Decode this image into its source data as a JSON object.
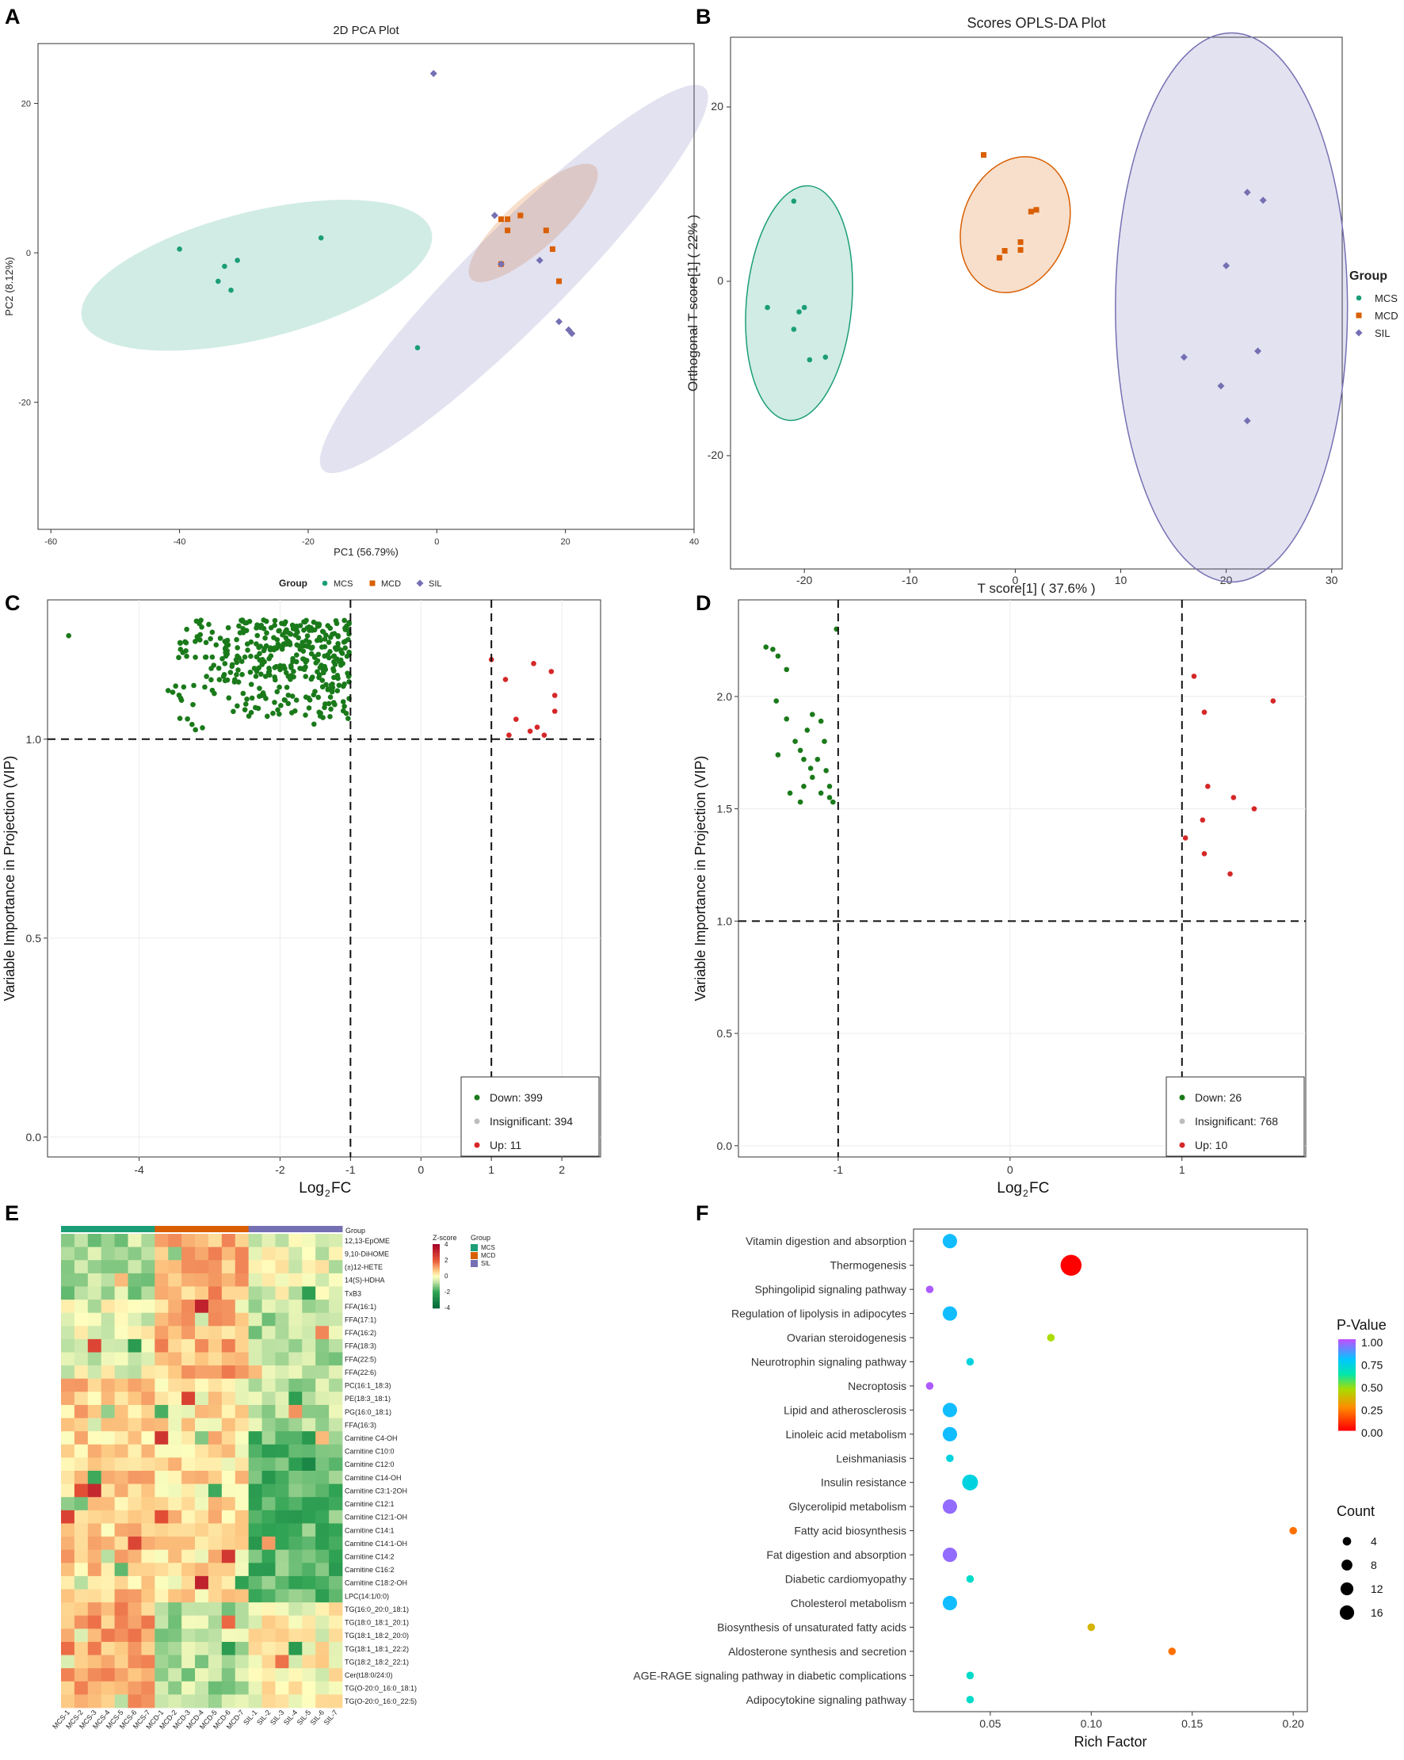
{
  "figure": {
    "panel_labels": [
      "A",
      "B",
      "C",
      "D",
      "E",
      "F"
    ],
    "colors": {
      "MCS": "#1b9e77",
      "MCD": "#d95f02",
      "SIL": "#7570b3",
      "down": "#1a7a1a",
      "insig": "#bdbdbd",
      "up": "#d62728"
    }
  },
  "chart_data": [
    {
      "panel": "A",
      "type": "scatter",
      "title": "2D PCA Plot",
      "xlabel": "PC1 (56.79%)",
      "ylabel": "PC2 (8.12%)",
      "xlim": [
        -62,
        40
      ],
      "ylim": [
        -37,
        28
      ],
      "xticks": [
        -60,
        -40,
        -20,
        0,
        20,
        40
      ],
      "yticks": [
        -20,
        0,
        20
      ],
      "legend": {
        "title": "Group",
        "position": "bottom",
        "entries": [
          "MCS",
          "MCD",
          "SIL"
        ]
      },
      "series": [
        {
          "name": "MCS",
          "points": [
            [
              -40,
              0.5
            ],
            [
              -33,
              -1.8
            ],
            [
              -34,
              -3.8
            ],
            [
              -31,
              -1
            ],
            [
              -32,
              -5
            ],
            [
              -18,
              2
            ],
            [
              -3,
              -12.7
            ]
          ],
          "ellipse": {
            "cx": -28,
            "cy": -3,
            "rx": 28,
            "ry": 8.5,
            "angle_deg": -14
          }
        },
        {
          "name": "MCD",
          "points": [
            [
              10,
              4.5
            ],
            [
              11,
              4.5
            ],
            [
              13,
              5
            ],
            [
              11,
              3
            ],
            [
              17,
              3
            ],
            [
              18,
              0.5
            ],
            [
              19,
              -3.8
            ],
            [
              10,
              -1.5
            ]
          ],
          "ellipse": {
            "cx": 15,
            "cy": 4,
            "rx": 13,
            "ry": 3.5,
            "angle_deg": -42
          }
        },
        {
          "name": "SIL",
          "points": [
            [
              -0.5,
              24
            ],
            [
              9,
              5
            ],
            [
              10,
              -1.5
            ],
            [
              16,
              -1
            ],
            [
              19,
              -9.2
            ],
            [
              20.5,
              -10.3
            ],
            [
              21,
              -10.8
            ]
          ],
          "ellipse": {
            "cx": 12,
            "cy": -3.5,
            "rx": 42,
            "ry": 6.5,
            "angle_deg": -45
          }
        }
      ]
    },
    {
      "panel": "B",
      "type": "scatter",
      "title": "Scores OPLS-DA Plot",
      "xlabel": "T score[1] ( 37.6% )",
      "ylabel": "Orthogonal T score[1] ( 22% )",
      "xlim": [
        -27,
        31
      ],
      "ylim": [
        -33,
        28
      ],
      "xticks": [
        -20,
        -10,
        0,
        10,
        20,
        30
      ],
      "yticks": [
        -20,
        0,
        20
      ],
      "legend": {
        "title": "Group",
        "position": "right",
        "entries": [
          "MCS",
          "MCD",
          "SIL"
        ]
      },
      "series": [
        {
          "name": "MCS",
          "points": [
            [
              -21,
              9.2
            ],
            [
              -23.5,
              -3
            ],
            [
              -20.5,
              -3.5
            ],
            [
              -20,
              -3
            ],
            [
              -21,
              -5.5
            ],
            [
              -19.5,
              -9
            ],
            [
              -18,
              -8.7
            ]
          ],
          "ellipse": {
            "cx": -20.5,
            "cy": -2.5,
            "rx": 5,
            "ry": 13.5,
            "angle_deg": 5
          }
        },
        {
          "name": "MCD",
          "points": [
            [
              -3,
              14.5
            ],
            [
              0.5,
              4.5
            ],
            [
              1.5,
              8
            ],
            [
              2,
              8.2
            ],
            [
              -1,
              3.5
            ],
            [
              -1.5,
              2.7
            ],
            [
              0.5,
              3.6
            ]
          ],
          "ellipse": {
            "cx": 0,
            "cy": 6.5,
            "rx": 5,
            "ry": 8,
            "angle_deg": 20
          }
        },
        {
          "name": "SIL",
          "points": [
            [
              22,
              10.2
            ],
            [
              23.5,
              9.3
            ],
            [
              20,
              1.8
            ],
            [
              16,
              -8.7
            ],
            [
              23,
              -8
            ],
            [
              19.5,
              -12
            ],
            [
              22,
              -16
            ]
          ],
          "ellipse": {
            "cx": 20.5,
            "cy": -3,
            "rx": 11,
            "ry": 31.5,
            "angle_deg": 0
          }
        }
      ]
    },
    {
      "panel": "C",
      "type": "volcano",
      "xlabel": "Log2FC",
      "ylabel": "Variable Importance in Projection (VIP)",
      "xlim": [
        -5.3,
        2.55
      ],
      "ylim": [
        -0.05,
        1.35
      ],
      "xticks": [
        -4,
        -2,
        -1,
        0,
        1,
        2
      ],
      "xtick_labels": [
        "-4",
        "-2",
        "-1",
        "0",
        "1",
        "2"
      ],
      "yticks": [
        0.0,
        0.5,
        1.0
      ],
      "ytick_labels": [
        "0.0",
        "0.5",
        "1.0"
      ],
      "thresholds": {
        "fc": [
          -1,
          1
        ],
        "vip": 1.0
      },
      "counts": {
        "down": 399,
        "insignificant": 394,
        "up": 11
      },
      "legend_labels": [
        "Down: 399",
        "Insignificant: 394",
        "Up: 11"
      ]
    },
    {
      "panel": "D",
      "type": "volcano",
      "xlabel": "Log2FC",
      "ylabel": "Variable Importance in Projection (VIP)",
      "xlim": [
        -1.58,
        1.72
      ],
      "ylim": [
        -0.05,
        2.43
      ],
      "xticks": [
        -1,
        0,
        1
      ],
      "xtick_labels": [
        "-1",
        "0",
        "1"
      ],
      "yticks": [
        0.0,
        0.5,
        1.0,
        1.5,
        2.0
      ],
      "ytick_labels": [
        "0.0",
        "0.5",
        "1.0",
        "1.5",
        "2.0"
      ],
      "thresholds": {
        "fc": [
          -1,
          1
        ],
        "vip": 1.0
      },
      "counts": {
        "down": 26,
        "insignificant": 768,
        "up": 10
      },
      "legend_labels": [
        "Down: 26",
        "Insignificant: 768",
        "Up: 10"
      ]
    },
    {
      "panel": "E",
      "type": "heatmap",
      "annotation_label": "Group",
      "rows": [
        "12,13-EpOME",
        "9,10-DiHOME",
        "(±)12-HETE",
        "14(S)-HDHA",
        "TxB3",
        "FFA(16:1)",
        "FFA(17:1)",
        "FFA(16:2)",
        "FFA(18:3)",
        "FFA(22:5)",
        "FFA(22:6)",
        "PC(16:1_18:3)",
        "PE(18:3_18:1)",
        "PG(16:0_18:1)",
        "FFA(16:3)",
        "Carnitine C4-OH",
        "Carnitine C10:0",
        "Carnitine C12:0",
        "Carnitine C14-OH",
        "Carnitine C3:1-2OH",
        "Carnitine C12:1",
        "Carnitine C12:1-OH",
        "Carnitine C14:1",
        "Carnitine C14:1-OH",
        "Carnitine C14:2",
        "Carnitine C16:2",
        "Carnitine C18:2-OH",
        "LPC(14:1/0:0)",
        "TG(16:0_20:0_18:1)",
        "TG(18:0_18:1_20:1)",
        "TG(18:1_18:2_20:0)",
        "TG(18:1_18:1_22:2)",
        "TG(18:2_18:2_22:1)",
        "Cer(t18:0/24:0)",
        "TG(O-20:0_16:0_18:1)",
        "TG(O-20:0_16:0_22:5)"
      ],
      "columns": [
        "MCS-1",
        "MCS-2",
        "MCS-3",
        "MCS-4",
        "MCS-5",
        "MCS-6",
        "MCS-7",
        "MCD-1",
        "MCD-2",
        "MCD-3",
        "MCD-4",
        "MCD-5",
        "MCD-6",
        "MCD-7",
        "SIL-1",
        "SIL-2",
        "SIL-3",
        "SIL-4",
        "SIL-5",
        "SIL-6",
        "SIL-7"
      ],
      "colorbar": {
        "title": "Z-score",
        "min": -4,
        "max": 4,
        "ticks": [
          "4",
          "2",
          "0",
          "-2",
          "-4"
        ]
      },
      "group_legend": {
        "title": "Group",
        "entries": [
          "MCS",
          "MCD",
          "SIL"
        ]
      }
    },
    {
      "panel": "F",
      "type": "bubble",
      "xlabel": "Rich Factor",
      "xlim": [
        0.012,
        0.207
      ],
      "xticks": [
        0.05,
        0.1,
        0.15,
        0.2
      ],
      "xtick_labels": [
        "0.05",
        "0.10",
        "0.15",
        "0.20"
      ],
      "pathways": [
        "Vitamin digestion and absorption",
        "Thermogenesis",
        "Sphingolipid signaling pathway",
        "Regulation of lipolysis in adipocytes",
        "Ovarian steroidogenesis",
        "Neurotrophin signaling pathway",
        "Necroptosis",
        "Lipid and atherosclerosis",
        "Linoleic acid metabolism",
        "Leishmaniasis",
        "Insulin resistance",
        "Glycerolipid metabolism",
        "Fatty acid biosynthesis",
        "Fat digestion and absorption",
        "Diabetic cardiomyopathy",
        "Cholesterol metabolism",
        "Biosynthesis of unsaturated fatty acids",
        "Aldosterone synthesis and secretion",
        "AGE-RAGE signaling pathway in diabetic complications",
        "Adipocytokine signaling pathway"
      ],
      "rich_factor": [
        0.03,
        0.09,
        0.02,
        0.03,
        0.08,
        0.04,
        0.02,
        0.03,
        0.03,
        0.03,
        0.04,
        0.03,
        0.2,
        0.03,
        0.04,
        0.03,
        0.1,
        0.14,
        0.04,
        0.04
      ],
      "count": [
        7,
        18,
        1,
        7,
        1,
        1,
        1,
        7,
        7,
        1,
        9,
        7,
        1,
        7,
        1,
        7,
        1,
        1,
        1,
        1
      ],
      "p_value": [
        0.8,
        0.0,
        0.98,
        0.8,
        0.45,
        0.72,
        0.98,
        0.8,
        0.8,
        0.72,
        0.72,
        0.95,
        0.2,
        0.95,
        0.68,
        0.8,
        0.35,
        0.2,
        0.68,
        0.68
      ],
      "p_legend": {
        "title": "P-Value",
        "ticks": [
          "1.00",
          "0.75",
          "0.50",
          "0.25",
          "0.00"
        ]
      },
      "count_legend": {
        "title": "Count",
        "ticks": [
          "4",
          "8",
          "12",
          "16"
        ],
        "values": [
          4,
          8,
          12,
          16
        ]
      }
    }
  ]
}
